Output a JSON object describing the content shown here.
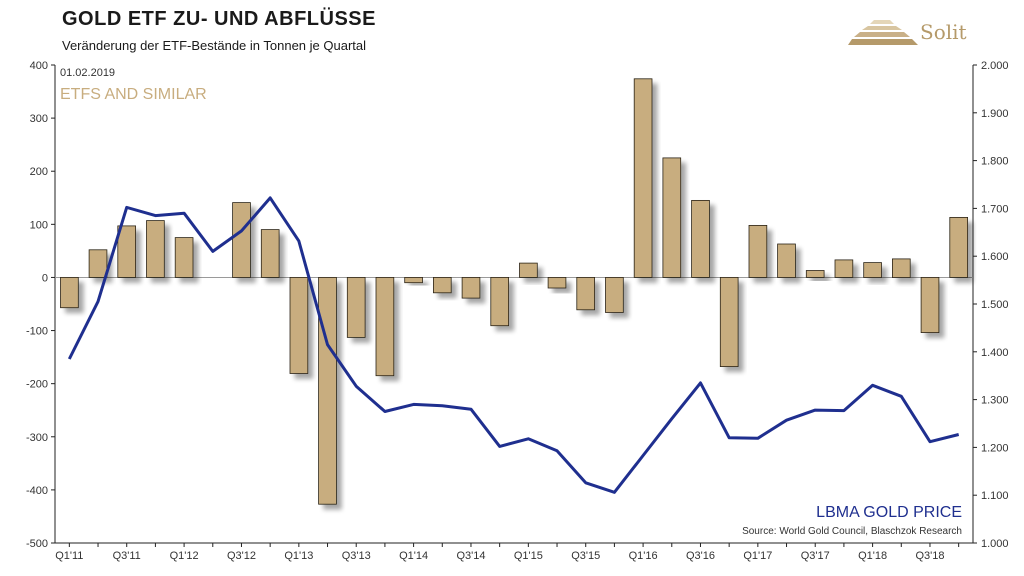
{
  "header": {
    "title": "GOLD ETF ZU- UND ABFLÜSSE",
    "subtitle": "Veränderung der ETF-Bestände in Tonnen je Quartal",
    "logo_text": "Solit"
  },
  "chart_data": {
    "type": "bar",
    "date_label": "01.02.2019",
    "bar_label": "ETFS AND SIMILAR",
    "line_label": "LBMA GOLD PRICE",
    "source": "Source: World Gold Council, Blaschzok Research",
    "categories": [
      "Q1'11",
      "Q2'11",
      "Q3'11",
      "Q4'11",
      "Q1'12",
      "Q2'12",
      "Q3'12",
      "Q4'12",
      "Q1'13",
      "Q2'13",
      "Q3'13",
      "Q4'13",
      "Q1'14",
      "Q2'14",
      "Q3'14",
      "Q4'14",
      "Q1'15",
      "Q2'15",
      "Q3'15",
      "Q4'15",
      "Q1'16",
      "Q2'16",
      "Q3'16",
      "Q4'16",
      "Q1'17",
      "Q2'17",
      "Q3'17",
      "Q4'17",
      "Q1'18",
      "Q2'18",
      "Q3'18",
      "Q4'18"
    ],
    "x_tick_labels": [
      "Q1'11",
      "",
      "Q3'11",
      "",
      "Q1'12",
      "",
      "Q3'12",
      "",
      "Q1'13",
      "",
      "Q3'13",
      "",
      "Q1'14",
      "",
      "Q3'14",
      "",
      "Q1'15",
      "",
      "Q3'15",
      "",
      "Q1'16",
      "",
      "Q3'16",
      "",
      "Q1'17",
      "",
      "Q3'17",
      "",
      "Q1'18",
      "",
      "Q3'18",
      ""
    ],
    "series": [
      {
        "axis": "left",
        "type": "bar",
        "values": [
          -57,
          52,
          97,
          107,
          75,
          0,
          141,
          90,
          -181,
          -427,
          -113,
          -185,
          -10,
          -29,
          -39,
          -91,
          27,
          -20,
          -61,
          -66,
          374,
          225,
          145,
          -168,
          98,
          63,
          13,
          33,
          28,
          35,
          -104,
          113
        ]
      },
      {
        "axis": "right",
        "type": "line",
        "values": [
          1385,
          1505,
          1702,
          1685,
          1690,
          1610,
          1653,
          1722,
          1632,
          1415,
          1328,
          1275,
          1290,
          1287,
          1280,
          1202,
          1218,
          1193,
          1126,
          1106,
          1183,
          1260,
          1335,
          1220,
          1219,
          1257,
          1278,
          1277,
          1330,
          1307,
          1212,
          1227
        ]
      }
    ],
    "y_left": {
      "min": -500,
      "max": 400,
      "ticks": [
        "-500",
        "-400",
        "-300",
        "-200",
        "-100",
        "0",
        "100",
        "200",
        "300",
        "400"
      ]
    },
    "y_right": {
      "min": 1000,
      "max": 2000,
      "ticks": [
        "1.000",
        "1.100",
        "1.200",
        "1.300",
        "1.400",
        "1.500",
        "1.600",
        "1.700",
        "1.800",
        "1.900",
        "2.000"
      ]
    },
    "colors": {
      "bar_fill": "#c8ad7f",
      "bar_stroke": "#2b2416",
      "line": "#1f2f8f",
      "bar_label": "#c8ad7f",
      "line_label": "#1f2f8f",
      "axis": "#222222",
      "logo": "#b59a6a"
    }
  }
}
